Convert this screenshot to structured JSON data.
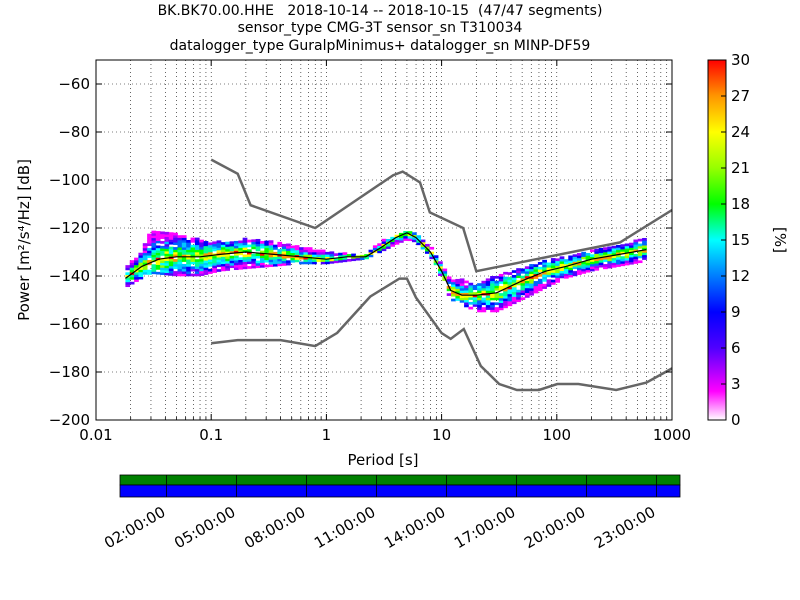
{
  "chart_data": {
    "type": "heatmap",
    "title_lines": [
      "BK.BK70.00.HHE   2018-10-14 -- 2018-10-15  (47/47 segments)",
      "sensor_type CMG-3T sensor_sn T310034",
      "datalogger_type GuralpMinimus+ datalogger_sn MINP-DF59"
    ],
    "xlabel": "Period [s]",
    "ylabel": "Power [m²/s⁴/Hz] [dB]",
    "xscale": "log",
    "xlim": [
      0.01,
      1000
    ],
    "ylim": [
      -200,
      -50
    ],
    "xticks": [
      {
        "v": 0.01,
        "label": "0.01"
      },
      {
        "v": 0.1,
        "label": "0.1"
      },
      {
        "v": 1,
        "label": "1"
      },
      {
        "v": 10,
        "label": "10"
      },
      {
        "v": 100,
        "label": "100"
      },
      {
        "v": 1000,
        "label": "1000"
      }
    ],
    "yticks": [
      -60,
      -80,
      -100,
      -120,
      -140,
      -160,
      -180,
      -200
    ],
    "grid": true,
    "colorbar": {
      "label": "[%]",
      "min": 0,
      "max": 30,
      "ticks": [
        0,
        3,
        6,
        9,
        12,
        15,
        18,
        21,
        24,
        27,
        30
      ]
    },
    "noise_models": [
      {
        "x": [
          0.1,
          0.17,
          0.22,
          0.8,
          3.8,
          4.6,
          6.5,
          7.9,
          15.4,
          20,
          354,
          1000
        ],
        "y": [
          -91.5,
          -97.4,
          -110.5,
          -120,
          -98,
          -96.5,
          -101,
          -113.5,
          -120,
          -138,
          -126,
          -112.5
        ]
      },
      {
        "x": [
          0.1,
          0.17,
          0.4,
          0.8,
          1.24,
          2.4,
          4.3,
          5,
          6,
          10,
          12,
          15.6,
          21.9,
          31.6,
          45,
          70,
          101,
          154,
          328,
          600,
          1000
        ],
        "y": [
          -168,
          -166.7,
          -166.7,
          -169.2,
          -163.7,
          -148.6,
          -141.1,
          -141.1,
          -149,
          -163.8,
          -166.2,
          -162.1,
          -177.5,
          -185,
          -187.5,
          -187.5,
          -185,
          -185,
          -187.5,
          -184.4,
          -178.5
        ]
      }
    ],
    "mode_line": {
      "x": [
        0.018,
        0.025,
        0.035,
        0.05,
        0.08,
        0.12,
        0.2,
        0.35,
        0.6,
        1.0,
        1.5,
        2.2,
        3.0,
        4.0,
        5.0,
        6.0,
        8.0,
        10.0,
        12.0,
        15.0,
        20.0,
        30.0,
        50.0,
        80.0,
        120.0,
        200.0,
        350.0,
        600.0
      ],
      "y": [
        -141,
        -136,
        -133,
        -132,
        -132,
        -131,
        -130,
        -131,
        -132,
        -133,
        -132,
        -132,
        -128,
        -124,
        -122,
        -124,
        -130,
        -138,
        -146,
        -148,
        -148,
        -147,
        -142,
        -138,
        -136,
        -133,
        -131,
        -129
      ]
    },
    "pdf_bands": {
      "x": [
        0.018,
        0.025,
        0.03,
        0.05,
        0.08,
        0.12,
        0.2,
        0.35,
        0.6,
        1.0,
        1.5,
        2.2,
        3.0,
        4.0,
        5.0,
        6.0,
        8.0,
        10.0,
        12.0,
        15.0,
        20.0,
        30.0,
        50.0,
        80.0,
        120.0,
        200.0,
        350.0,
        600.0
      ],
      "upper": [
        -137,
        -130,
        -121,
        -123,
        -125,
        -126,
        -125,
        -126,
        -128,
        -130,
        -131,
        -131,
        -126,
        -123,
        -121,
        -122,
        -128,
        -135,
        -142,
        -142,
        -144,
        -140,
        -137,
        -134,
        -132,
        -130,
        -127,
        -125
      ],
      "lower": [
        -145,
        -141,
        -139,
        -140,
        -140,
        -138,
        -137,
        -136,
        -135,
        -135,
        -134,
        -133,
        -130,
        -127,
        -125,
        -126,
        -132,
        -141,
        -150,
        -152,
        -155,
        -155,
        -150,
        -145,
        -141,
        -138,
        -136,
        -134
      ]
    },
    "time_axis": {
      "labels": [
        "02:00:00",
        "05:00:00",
        "08:00:00",
        "11:00:00",
        "14:00:00",
        "17:00:00",
        "20:00:00",
        "23:00:00"
      ],
      "tick_fractions": [
        0.083,
        0.208,
        0.333,
        0.458,
        0.583,
        0.708,
        0.833,
        0.958
      ],
      "coverage_color": "#008000",
      "data_color": "#0000ff"
    }
  }
}
